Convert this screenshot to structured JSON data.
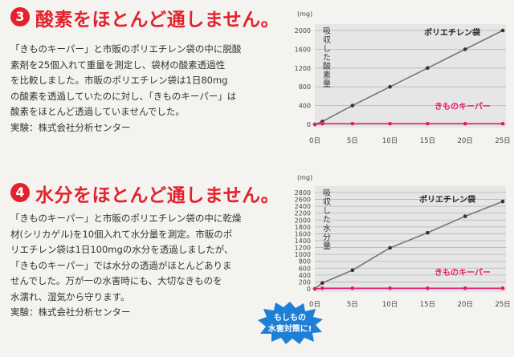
{
  "section3": {
    "number": "3",
    "title": "酸素をほとんど通しません。",
    "body": [
      "「きものキーパー」と市販のポリエチレン袋の中に脱酸",
      "素剤を25個入れて重量を測定し、袋材の酸素透過性",
      "を比較しました。市販のポリエチレン袋は1日80mg",
      "の酸素を透過していたのに対し、「きものキーパー」は",
      "酸素をほとんど透過していませんでした。"
    ],
    "credit": "実験：株式会社分析センター"
  },
  "section4": {
    "number": "4",
    "title": "水分をほとんど通しません。",
    "body": [
      "「きものキーパー」と市販のポリエチレン袋の中に乾燥",
      "材(シリカゲル)を10個入れて水分量を測定。市販のポ",
      "リエチレン袋は1日100mgの水分を透過しましたが、",
      "「きものキーパー」では水分の透過がほとんどありま",
      "せんでした。万が一の水害時にも、大切なきものを",
      "水濡れ、湿気から守ります。"
    ],
    "credit": "実験：株式会社分析センター"
  },
  "badge": {
    "line1": "もしもの",
    "line2": "水害対策に!"
  },
  "chart_data": [
    {
      "type": "line",
      "unit": "(mg)",
      "ylabel": "吸収した酸素量",
      "x_ticks": [
        "0日",
        "5日",
        "10日",
        "15日",
        "20日",
        "25日"
      ],
      "x_values": [
        0,
        5,
        10,
        15,
        20,
        25
      ],
      "ylim": [
        0,
        2000
      ],
      "yticks": [
        0,
        400,
        800,
        1200,
        1600,
        2000
      ],
      "series": [
        {
          "name": "ポリエチレン袋",
          "color": "#777777",
          "x": [
            0,
            1,
            5,
            10,
            15,
            20,
            25
          ],
          "y": [
            0,
            60,
            400,
            800,
            1200,
            1600,
            2000
          ]
        },
        {
          "name": "きものキーパー",
          "color": "#e8186d",
          "x": [
            0,
            1,
            5,
            10,
            15,
            20,
            25
          ],
          "y": [
            0,
            15,
            15,
            15,
            15,
            15,
            15
          ]
        }
      ]
    },
    {
      "type": "line",
      "unit": "(mg)",
      "ylabel": "吸収した水分量",
      "x_ticks": [
        "0日",
        "5日",
        "10日",
        "15日",
        "20日",
        "25日"
      ],
      "x_values": [
        0,
        5,
        10,
        15,
        20,
        25
      ],
      "ylim": [
        0,
        2800
      ],
      "yticks": [
        0,
        200,
        400,
        600,
        800,
        1000,
        1200,
        1400,
        1600,
        1800,
        2000,
        2200,
        2400,
        2600,
        2800
      ],
      "series": [
        {
          "name": "ポリエチレン袋",
          "color": "#777777",
          "x": [
            0,
            1,
            5,
            10,
            15,
            20,
            25
          ],
          "y": [
            0,
            170,
            540,
            1190,
            1630,
            2110,
            2540
          ]
        },
        {
          "name": "きものキーパー",
          "color": "#e8186d",
          "x": [
            0,
            1,
            5,
            10,
            15,
            20,
            25
          ],
          "y": [
            0,
            15,
            15,
            15,
            15,
            15,
            15
          ]
        }
      ]
    }
  ]
}
